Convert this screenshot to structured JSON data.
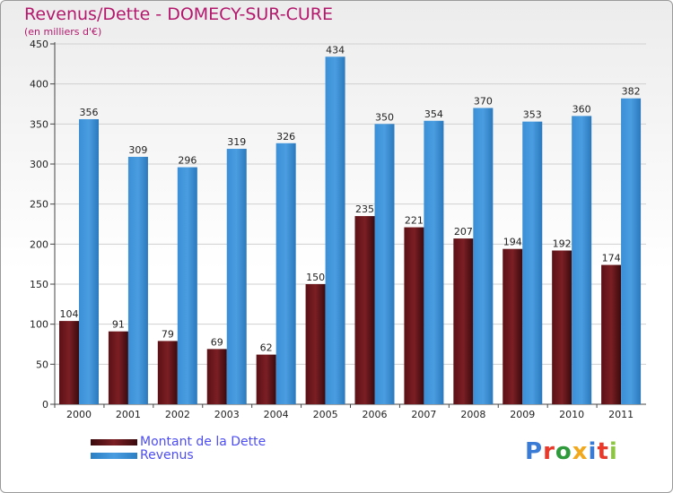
{
  "header": {
    "title": "Revenus/Dette - DOMECY-SUR-CURE",
    "subtitle": "(en milliers d'€)"
  },
  "logo": {
    "letters": [
      "P",
      "r",
      "o",
      "x",
      "i",
      "t",
      "i"
    ],
    "colors": [
      "#3a7bd5",
      "#e8392b",
      "#2e9a3b",
      "#f2a81d",
      "#3a7bd5",
      "#e8392b",
      "#8cc63f"
    ]
  },
  "colors": {
    "dette": "#7b1f24",
    "revenus": "#4a9de0",
    "title": "#b3186d",
    "legend_text": "#4d4df5"
  },
  "chart_data": {
    "type": "bar",
    "title": "Revenus/Dette - DOMECY-SUR-CURE",
    "subtitle": "(en milliers d'€)",
    "categories": [
      "2000",
      "2001",
      "2002",
      "2003",
      "2004",
      "2005",
      "2006",
      "2007",
      "2008",
      "2009",
      "2010",
      "2011"
    ],
    "series": [
      {
        "name": "Montant de la Dette",
        "values": [
          104,
          91,
          79,
          69,
          62,
          150,
          235,
          221,
          207,
          194,
          192,
          174
        ]
      },
      {
        "name": "Revenus",
        "values": [
          356,
          309,
          296,
          319,
          326,
          434,
          350,
          354,
          370,
          353,
          360,
          382
        ]
      }
    ],
    "ylim": [
      0,
      450
    ],
    "yticks": [
      0,
      50,
      100,
      150,
      200,
      250,
      300,
      350,
      400,
      450
    ],
    "grid": true,
    "legend": "bottom-left"
  }
}
